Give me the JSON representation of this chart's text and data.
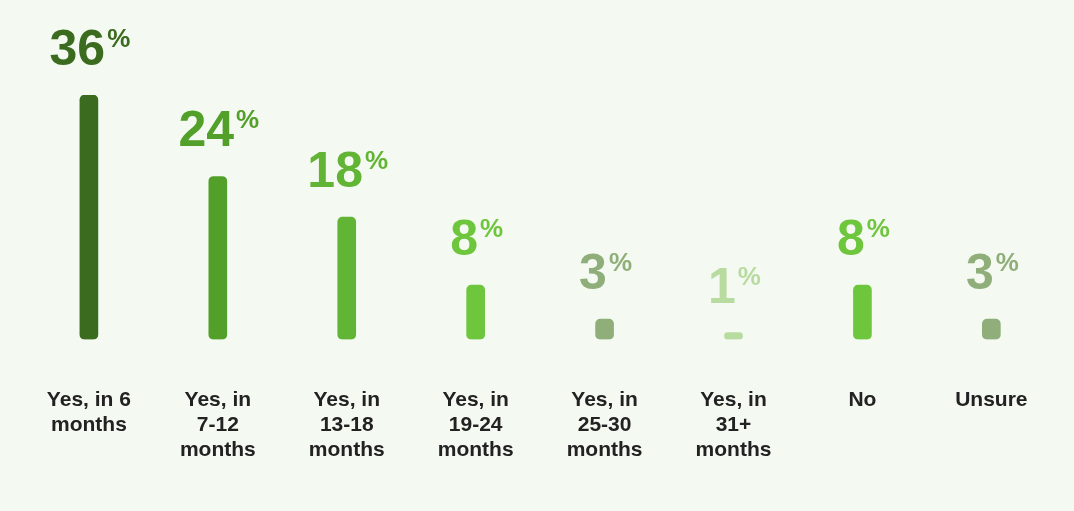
{
  "chart_data": {
    "type": "bar",
    "categories": [
      "Yes, in 6 months",
      "Yes, in 7-12 months",
      "Yes, in 13-18 months",
      "Yes, in 19-24 months",
      "Yes, in 25-30 months",
      "Yes, in 31+ months",
      "No",
      "Unsure"
    ],
    "values": [
      36,
      24,
      18,
      8,
      3,
      1,
      8,
      3
    ],
    "colors": [
      "#3a6b1e",
      "#52a02a",
      "#62b534",
      "#6ec63c",
      "#8fae7a",
      "#b8dca0",
      "#6ec63c",
      "#8fae7a"
    ],
    "value_labels": [
      "36%",
      "24%",
      "18%",
      "8%",
      "3%",
      "1%",
      "8%",
      "3%"
    ],
    "grid": false,
    "legend": false
  }
}
